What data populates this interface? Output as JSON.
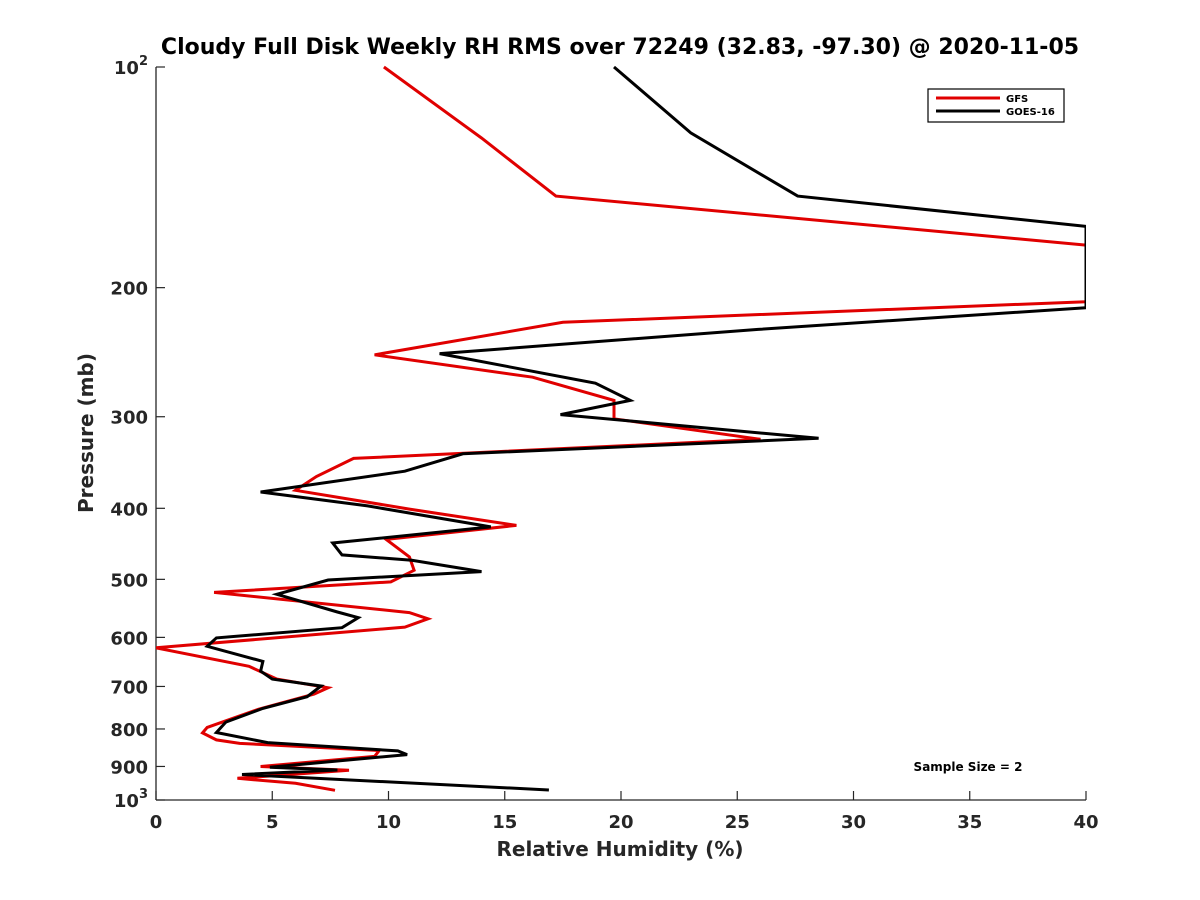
{
  "chart_data": {
    "type": "line",
    "title": "Cloudy Full Disk Weekly RH RMS over 72249 (32.83, -97.30) @ 2020-11-05",
    "xlabel": "Relative Humidity (%)",
    "ylabel": "Pressure (mb)",
    "xlim": [
      0,
      40
    ],
    "ylim": [
      100,
      1000
    ],
    "y_scale": "log",
    "y_reversed": true,
    "x_ticks": [
      "0",
      "5",
      "10",
      "15",
      "20",
      "25",
      "30",
      "35",
      "40"
    ],
    "y_ticks": [
      {
        "value": 100,
        "label": "10",
        "sup": "2"
      },
      {
        "value": 200,
        "label": "200",
        "sup": ""
      },
      {
        "value": 300,
        "label": "300",
        "sup": ""
      },
      {
        "value": 400,
        "label": "400",
        "sup": ""
      },
      {
        "value": 500,
        "label": "500",
        "sup": ""
      },
      {
        "value": 600,
        "label": "600",
        "sup": ""
      },
      {
        "value": 700,
        "label": "700",
        "sup": ""
      },
      {
        "value": 800,
        "label": "800",
        "sup": ""
      },
      {
        "value": 900,
        "label": "900",
        "sup": ""
      },
      {
        "value": 1000,
        "label": "10",
        "sup": "3"
      }
    ],
    "legend_position": "top-right",
    "annotation": "Sample Size = 2",
    "series": [
      {
        "name": "GFS",
        "color": "#e00000",
        "points": [
          [
            9.8,
            100
          ],
          [
            14.0,
            125
          ],
          [
            17.2,
            150
          ],
          [
            40,
            175
          ],
          [
            40,
            209
          ],
          [
            17.5,
            223
          ],
          [
            9.4,
            247
          ],
          [
            16.2,
            265
          ],
          [
            19.7,
            285
          ],
          [
            19.7,
            302
          ],
          [
            26.0,
            322
          ],
          [
            8.5,
            342
          ],
          [
            6.9,
            362
          ],
          [
            6.0,
            378
          ],
          [
            10.9,
            401
          ],
          [
            15.5,
            422
          ],
          [
            9.9,
            441
          ],
          [
            10.9,
            466
          ],
          [
            11.1,
            486
          ],
          [
            10.1,
            504
          ],
          [
            2.5,
            521
          ],
          [
            10.9,
            555
          ],
          [
            11.7,
            566
          ],
          [
            10.7,
            581
          ],
          [
            0,
            620
          ],
          [
            4.0,
            657
          ],
          [
            5.2,
            684
          ],
          [
            7.4,
            703
          ],
          [
            6.8,
            717
          ],
          [
            4.4,
            752
          ],
          [
            2.2,
            796
          ],
          [
            2.0,
            810
          ],
          [
            2.6,
            828
          ],
          [
            3.6,
            837
          ],
          [
            9.6,
            856
          ],
          [
            9.4,
            872
          ],
          [
            4.5,
            900
          ],
          [
            8.3,
            911
          ],
          [
            3.5,
            934
          ],
          [
            6.0,
            949
          ],
          [
            7.7,
            970
          ]
        ]
      },
      {
        "name": "GOES-16",
        "color": "#000000",
        "points": [
          [
            19.7,
            100
          ],
          [
            23.0,
            123
          ],
          [
            27.6,
            150
          ],
          [
            40,
            165
          ],
          [
            40,
            213
          ],
          [
            25.9,
            228
          ],
          [
            12.2,
            246
          ],
          [
            18.9,
            270
          ],
          [
            20.4,
            285
          ],
          [
            17.4,
            298
          ],
          [
            28.5,
            321
          ],
          [
            13.2,
            337
          ],
          [
            10.7,
            356
          ],
          [
            4.5,
            380
          ],
          [
            9.1,
            397
          ],
          [
            14.4,
            424
          ],
          [
            7.6,
            446
          ],
          [
            8.0,
            463
          ],
          [
            11.0,
            471
          ],
          [
            14.0,
            488
          ],
          [
            7.4,
            501
          ],
          [
            5.2,
            524
          ],
          [
            7.8,
            554
          ],
          [
            8.7,
            564
          ],
          [
            8.0,
            582
          ],
          [
            2.6,
            601
          ],
          [
            2.2,
            617
          ],
          [
            4.6,
            647
          ],
          [
            4.5,
            667
          ],
          [
            5.0,
            684
          ],
          [
            7.1,
            699
          ],
          [
            6.5,
            723
          ],
          [
            4.6,
            750
          ],
          [
            3.0,
            783
          ],
          [
            2.6,
            809
          ],
          [
            4.8,
            835
          ],
          [
            10.4,
            857
          ],
          [
            10.8,
            867
          ],
          [
            4.9,
            902
          ],
          [
            7.8,
            910
          ],
          [
            3.7,
            923
          ],
          [
            16.9,
            969
          ]
        ]
      }
    ]
  }
}
